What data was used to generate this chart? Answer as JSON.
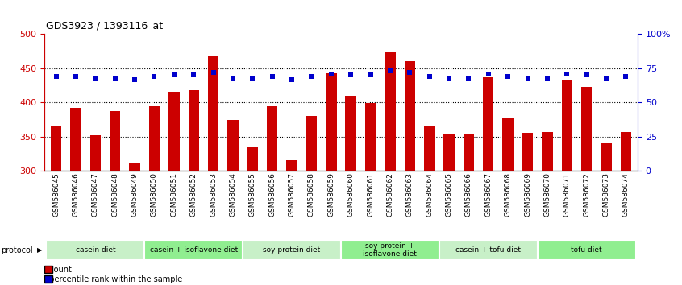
{
  "title": "GDS3923 / 1393116_at",
  "samples": [
    "GSM586045",
    "GSM586046",
    "GSM586047",
    "GSM586048",
    "GSM586049",
    "GSM586050",
    "GSM586051",
    "GSM586052",
    "GSM586053",
    "GSM586054",
    "GSM586055",
    "GSM586056",
    "GSM586057",
    "GSM586058",
    "GSM586059",
    "GSM586060",
    "GSM586061",
    "GSM586062",
    "GSM586063",
    "GSM586064",
    "GSM586065",
    "GSM586066",
    "GSM586067",
    "GSM586068",
    "GSM586069",
    "GSM586070",
    "GSM586071",
    "GSM586072",
    "GSM586073",
    "GSM586074"
  ],
  "counts": [
    366,
    392,
    352,
    388,
    312,
    395,
    416,
    418,
    468,
    375,
    335,
    395,
    316,
    380,
    443,
    410,
    399,
    473,
    460,
    366,
    354,
    355,
    437,
    378,
    356,
    357,
    434,
    423,
    340,
    357
  ],
  "percentile": [
    69,
    69,
    68,
    68,
    67,
    69,
    70,
    70,
    72,
    68,
    68,
    69,
    67,
    69,
    71,
    70,
    70,
    73,
    72,
    69,
    68,
    68,
    71,
    69,
    68,
    68,
    71,
    70,
    68,
    69
  ],
  "protocols": [
    {
      "label": "casein diet",
      "start": 0,
      "end": 5,
      "color": "#c8f0c8"
    },
    {
      "label": "casein + isoflavone diet",
      "start": 5,
      "end": 10,
      "color": "#90ee90"
    },
    {
      "label": "soy protein diet",
      "start": 10,
      "end": 15,
      "color": "#c8f0c8"
    },
    {
      "label": "soy protein +\nisoflavone diet",
      "start": 15,
      "end": 20,
      "color": "#90ee90"
    },
    {
      "label": "casein + tofu diet",
      "start": 20,
      "end": 25,
      "color": "#c8f0c8"
    },
    {
      "label": "tofu diet",
      "start": 25,
      "end": 30,
      "color": "#90ee90"
    }
  ],
  "bar_color": "#cc0000",
  "dot_color": "#0000cc",
  "ylim_left": [
    300,
    500
  ],
  "ylim_right": [
    0,
    100
  ],
  "yticks_left": [
    300,
    350,
    400,
    450,
    500
  ],
  "yticks_right": [
    0,
    25,
    50,
    75,
    100
  ],
  "background_color": "#ffffff"
}
